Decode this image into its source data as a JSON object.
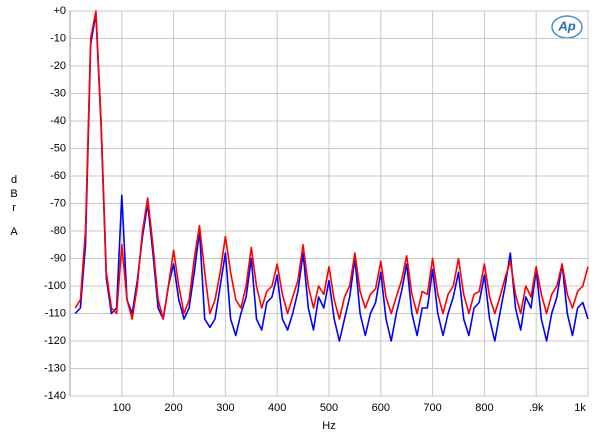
{
  "chart_data": {
    "type": "line",
    "logo": "Ap",
    "y_label": "dBr",
    "y_sublabel": "A",
    "x_label": "Hz",
    "xlim": [
      0,
      1000
    ],
    "ylim": [
      -140,
      0
    ],
    "xticks": [
      100,
      200,
      300,
      400,
      500,
      600,
      700,
      800,
      {
        "value": 900,
        "label": ".9k"
      },
      {
        "value": 1000,
        "label": "1k"
      }
    ],
    "yticks": [
      {
        "value": 0,
        "label": "+0"
      },
      -10,
      -20,
      -30,
      -40,
      -50,
      -60,
      -70,
      -80,
      -90,
      -100,
      -110,
      -120,
      -130,
      -140
    ],
    "grid": true,
    "x": [
      10,
      20,
      30,
      40,
      50,
      60,
      70,
      80,
      90,
      100,
      110,
      120,
      130,
      140,
      150,
      160,
      170,
      180,
      190,
      200,
      210,
      220,
      230,
      240,
      250,
      260,
      270,
      280,
      290,
      300,
      310,
      320,
      330,
      340,
      350,
      360,
      370,
      380,
      390,
      400,
      410,
      420,
      430,
      440,
      450,
      460,
      470,
      480,
      490,
      500,
      510,
      520,
      530,
      540,
      550,
      560,
      570,
      580,
      590,
      600,
      610,
      620,
      630,
      640,
      650,
      660,
      670,
      680,
      690,
      700,
      710,
      720,
      730,
      740,
      750,
      760,
      770,
      780,
      790,
      800,
      810,
      820,
      830,
      840,
      850,
      860,
      870,
      880,
      890,
      900,
      910,
      920,
      930,
      940,
      950,
      960,
      970,
      980,
      990,
      1000
    ],
    "series": [
      {
        "color": "#0000ff",
        "values": [
          -110,
          -108,
          -85,
          -12,
          -1,
          -42,
          -97,
          -110,
          -108,
          -67,
          -105,
          -110,
          -98,
          -82,
          -70,
          -88,
          -108,
          -112,
          -100,
          -92,
          -105,
          -112,
          -108,
          -95,
          -80,
          -112,
          -115,
          -112,
          -100,
          -88,
          -112,
          -118,
          -110,
          -104,
          -90,
          -112,
          -116,
          -106,
          -104,
          -96,
          -112,
          -116,
          -110,
          -102,
          -88,
          -108,
          -116,
          -104,
          -108,
          -98,
          -112,
          -120,
          -112,
          -104,
          -90,
          -110,
          -118,
          -110,
          -106,
          -95,
          -112,
          -120,
          -110,
          -102,
          -92,
          -110,
          -118,
          -108,
          -108,
          -94,
          -110,
          -118,
          -110,
          -104,
          -95,
          -112,
          -118,
          -108,
          -106,
          -96,
          -112,
          -120,
          -110,
          -100,
          -88,
          -108,
          -116,
          -104,
          -108,
          -94,
          -112,
          -120,
          -110,
          -104,
          -92,
          -110,
          -118,
          -108,
          -106,
          -112
        ]
      },
      {
        "color": "#ff0000",
        "values": [
          -108,
          -105,
          -80,
          -10,
          0,
          -40,
          -95,
          -108,
          -110,
          -85,
          -105,
          -112,
          -100,
          -80,
          -68,
          -85,
          -105,
          -112,
          -100,
          -87,
          -100,
          -110,
          -105,
          -90,
          -78,
          -95,
          -110,
          -105,
          -95,
          -82,
          -95,
          -105,
          -108,
          -100,
          -86,
          -100,
          -108,
          -102,
          -100,
          -92,
          -103,
          -110,
          -104,
          -98,
          -85,
          -100,
          -108,
          -100,
          -103,
          -93,
          -105,
          -112,
          -104,
          -100,
          -88,
          -102,
          -108,
          -103,
          -101,
          -91,
          -104,
          -110,
          -104,
          -98,
          -89,
          -103,
          -110,
          -102,
          -103,
          -90,
          -103,
          -110,
          -103,
          -100,
          -90,
          -103,
          -110,
          -103,
          -102,
          -92,
          -104,
          -110,
          -104,
          -97,
          -91,
          -103,
          -110,
          -100,
          -104,
          -93,
          -103,
          -110,
          -103,
          -100,
          -92,
          -103,
          -108,
          -102,
          -100,
          -93
        ]
      }
    ]
  }
}
